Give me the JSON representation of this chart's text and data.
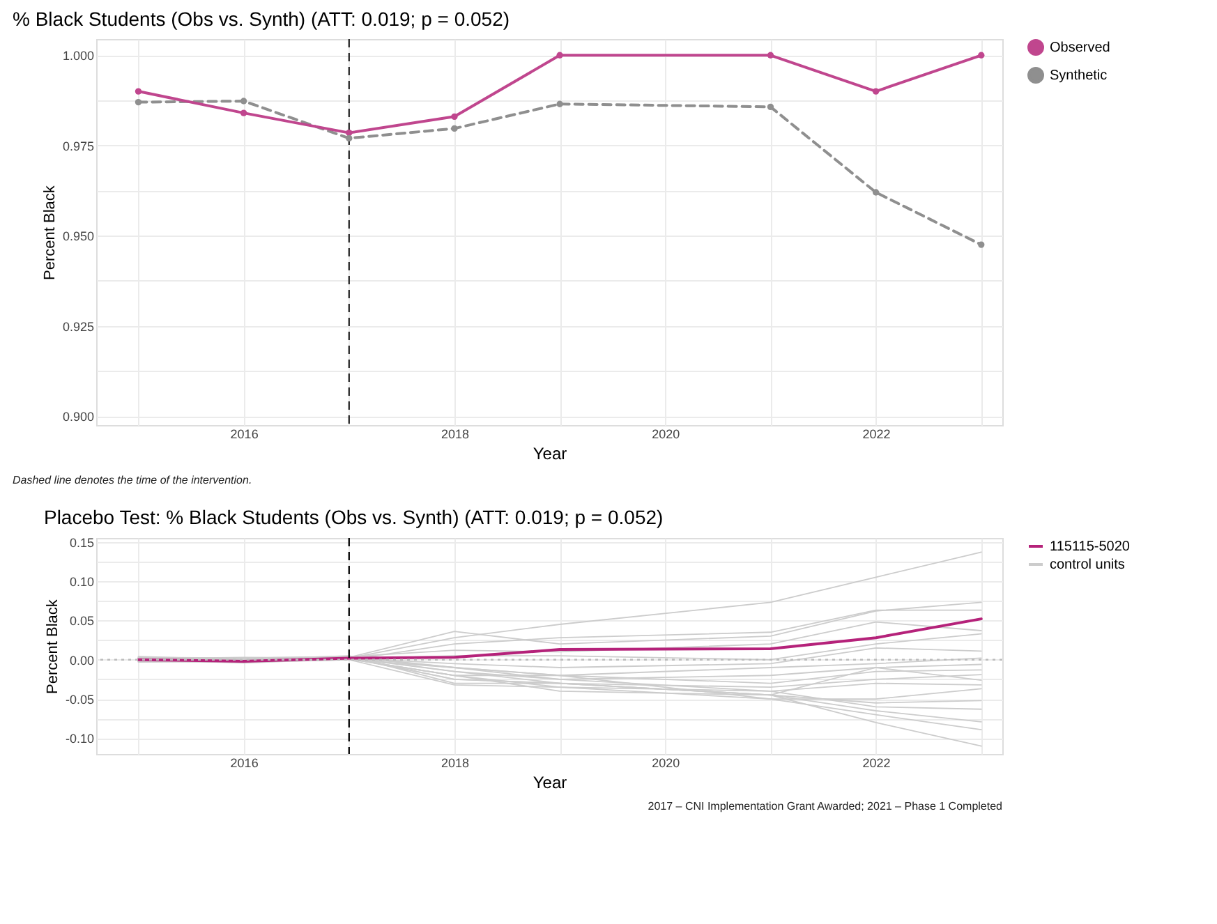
{
  "chart_data": [
    {
      "type": "line",
      "title": "% Black Students (Obs vs. Synth) (ATT: 0.019; p = 0.052)",
      "xlabel": "Year",
      "ylabel": "Percent Black",
      "x": [
        2015,
        2016,
        2017,
        2018,
        2019,
        2021,
        2022,
        2023
      ],
      "xlim": [
        2014.6,
        2023.2
      ],
      "xticks": [
        {
          "value": 2015,
          "label": null
        },
        2016,
        {
          "value": 2017,
          "label": null
        },
        2018,
        {
          "value": 2019,
          "label": null
        },
        2020,
        {
          "value": 2021,
          "label": null
        },
        2022,
        {
          "value": 2023,
          "label": null
        }
      ],
      "ylim": [
        0.8975,
        1.0045
      ],
      "yticks": [
        {
          "value": 0.9,
          "label": "0.900"
        },
        {
          "value": 0.9125,
          "label": null
        },
        {
          "value": 0.925,
          "label": "0.925"
        },
        {
          "value": 0.9375,
          "label": null
        },
        {
          "value": 0.95,
          "label": "0.950"
        },
        {
          "value": 0.9625,
          "label": null
        },
        {
          "value": 0.975,
          "label": "0.975"
        },
        {
          "value": 0.9875,
          "label": null
        },
        {
          "value": 1.0,
          "label": "1.000"
        }
      ],
      "grid": true,
      "legend": "right",
      "series": [
        {
          "name": "Observed",
          "color": "#c0468e",
          "marker": "circle",
          "line_style": "solid",
          "values": [
            0.99,
            0.984,
            0.9785,
            0.983,
            1.0,
            1.0,
            0.99,
            1.0
          ]
        },
        {
          "name": "Synthetic",
          "color": "#8f8f8f",
          "marker": "circle",
          "line_style": "dashed",
          "values": [
            0.987,
            0.9873,
            0.977,
            0.9797,
            0.9865,
            0.9857,
            0.962,
            0.9475
          ]
        }
      ],
      "ref_lines": [
        {
          "axis": "x",
          "value": 2017,
          "color": "#333333",
          "line_style": "dashed"
        }
      ],
      "annotations": [
        "Dashed line denotes the time of the intervention."
      ]
    },
    {
      "type": "line",
      "title": "Placebo Test: % Black Students (Obs vs. Synth) (ATT: 0.019; p = 0.052)",
      "xlabel": "Year",
      "ylabel": "Percent Black",
      "x": [
        2015,
        2016,
        2017,
        2018,
        2019,
        2021,
        2022,
        2023
      ],
      "xlim": [
        2014.6,
        2023.2
      ],
      "xticks": [
        {
          "value": 2015,
          "label": null
        },
        2016,
        {
          "value": 2017,
          "label": null
        },
        2018,
        {
          "value": 2019,
          "label": null
        },
        2020,
        {
          "value": 2021,
          "label": null
        },
        2022,
        {
          "value": 2023,
          "label": null
        }
      ],
      "ylim": [
        -0.12,
        0.155
      ],
      "yticks": [
        {
          "value": -0.1,
          "label": "-0.10"
        },
        {
          "value": -0.075,
          "label": null
        },
        {
          "value": -0.05,
          "label": "-0.05"
        },
        {
          "value": -0.025,
          "label": null
        },
        {
          "value": 0.0,
          "label": "0.00"
        },
        {
          "value": 0.025,
          "label": null
        },
        {
          "value": 0.05,
          "label": "0.05"
        },
        {
          "value": 0.075,
          "label": null
        },
        {
          "value": 0.1,
          "label": "0.10"
        },
        {
          "value": 0.125,
          "label": null
        },
        {
          "value": 0.15,
          "label": "0.15"
        }
      ],
      "grid": true,
      "legend": "right",
      "series": [
        {
          "name": "115115-5020",
          "color": "#b5227a",
          "line_style": "solid",
          "values": [
            0.0,
            -0.002,
            0.002,
            0.003,
            0.013,
            0.014,
            0.028,
            0.052
          ]
        },
        {
          "name": "control units",
          "color": "#cccccc",
          "line_style": "solid",
          "values": [
            0.002,
            -0.001,
            0.002,
            0.028,
            0.045,
            0.073,
            0.105,
            0.137
          ]
        },
        {
          "color": "#cccccc",
          "line_style": "solid",
          "values": [
            0.004,
            0.0,
            0.003,
            0.036,
            0.02,
            0.03,
            0.062,
            0.073
          ]
        },
        {
          "color": "#cccccc",
          "line_style": "solid",
          "values": [
            -0.002,
            -0.003,
            0.0,
            0.02,
            0.028,
            0.035,
            0.063,
            0.063
          ]
        },
        {
          "color": "#cccccc",
          "line_style": "solid",
          "values": [
            0.001,
            0.002,
            0.004,
            0.012,
            0.01,
            0.02,
            0.048,
            0.037
          ]
        },
        {
          "color": "#cccccc",
          "line_style": "solid",
          "values": [
            0.0,
            -0.004,
            0.001,
            0.005,
            0.005,
            0.0,
            0.02,
            0.033
          ]
        },
        {
          "color": "#cccccc",
          "line_style": "solid",
          "values": [
            0.003,
            0.001,
            0.002,
            -0.005,
            -0.01,
            -0.005,
            0.015,
            0.011
          ]
        },
        {
          "color": "#cccccc",
          "line_style": "solid",
          "values": [
            -0.003,
            -0.002,
            0.0,
            -0.01,
            -0.02,
            -0.01,
            -0.005,
            0.002
          ]
        },
        {
          "color": "#cccccc",
          "line_style": "solid",
          "values": [
            0.002,
            0.0,
            0.003,
            -0.015,
            -0.025,
            -0.02,
            -0.01,
            -0.006
          ]
        },
        {
          "color": "#cccccc",
          "line_style": "solid",
          "values": [
            0.0,
            -0.001,
            0.001,
            -0.02,
            -0.02,
            -0.03,
            -0.015,
            -0.013
          ]
        },
        {
          "color": "#cccccc",
          "line_style": "solid",
          "values": [
            0.001,
            0.003,
            0.002,
            -0.025,
            -0.03,
            -0.035,
            -0.025,
            -0.019
          ]
        },
        {
          "color": "#cccccc",
          "line_style": "solid",
          "values": [
            -0.001,
            0.0,
            0.005,
            -0.03,
            -0.03,
            -0.045,
            -0.01,
            -0.026
          ]
        },
        {
          "color": "#cccccc",
          "line_style": "solid",
          "values": [
            0.002,
            -0.002,
            0.0,
            -0.032,
            -0.035,
            -0.04,
            -0.03,
            -0.032
          ]
        },
        {
          "color": "#cccccc",
          "line_style": "solid",
          "values": [
            0.0,
            0.001,
            0.003,
            -0.01,
            -0.02,
            -0.05,
            -0.05,
            -0.037
          ]
        },
        {
          "color": "#cccccc",
          "line_style": "solid",
          "values": [
            -0.002,
            -0.003,
            0.001,
            -0.02,
            -0.04,
            -0.045,
            -0.055,
            -0.052
          ]
        },
        {
          "color": "#cccccc",
          "line_style": "solid",
          "values": [
            0.003,
            0.002,
            0.004,
            -0.01,
            -0.025,
            -0.04,
            -0.06,
            -0.063
          ]
        },
        {
          "color": "#cccccc",
          "line_style": "solid",
          "values": [
            0.001,
            -0.001,
            0.002,
            -0.015,
            -0.03,
            -0.045,
            -0.065,
            -0.079
          ]
        },
        {
          "color": "#cccccc",
          "line_style": "solid",
          "values": [
            0.0,
            0.0,
            0.001,
            -0.02,
            -0.035,
            -0.05,
            -0.07,
            -0.089
          ]
        },
        {
          "color": "#cccccc",
          "line_style": "solid",
          "values": [
            -0.001,
            -0.002,
            0.003,
            -0.025,
            -0.03,
            -0.045,
            -0.08,
            -0.11
          ]
        }
      ],
      "ref_lines": [
        {
          "axis": "x",
          "value": 2017,
          "color": "#111111",
          "line_style": "dashed"
        },
        {
          "axis": "y",
          "value": 0,
          "color": "#bbbbbb",
          "line_style": "dotted"
        }
      ],
      "annotations": [
        "2017 – CNI Implementation Grant Awarded; 2021 – Phase 1 Completed"
      ]
    }
  ]
}
